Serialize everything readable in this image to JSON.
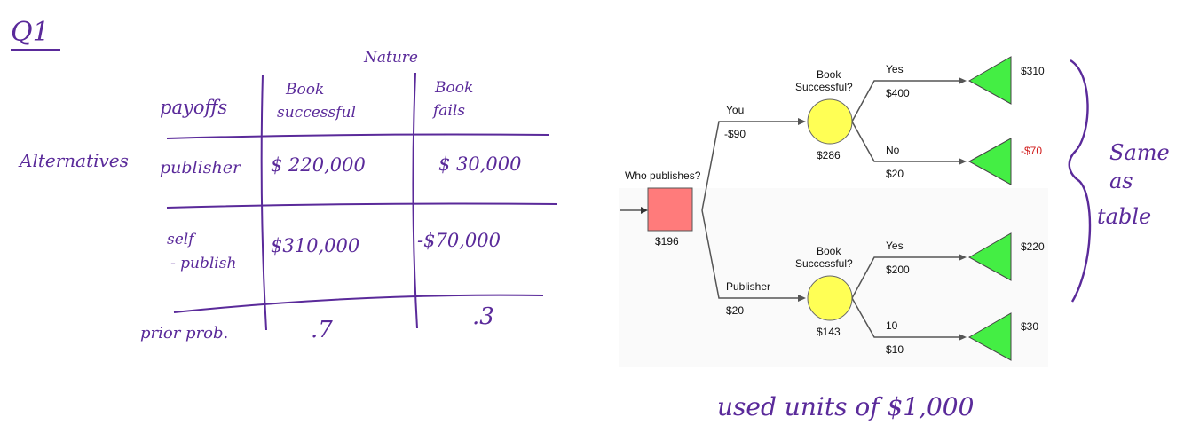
{
  "notes": {
    "question": "Q1",
    "nature": "Nature",
    "alternatives": "Alternatives",
    "payoffs": "payoffs",
    "col_success_1": "Book",
    "col_success_2": "successful",
    "col_fail_1": "Book",
    "col_fail_2": "fails",
    "row_publisher": "publisher",
    "row_self_1": "self",
    "row_self_2": "- publish",
    "prior": "prior prob.",
    "pub_success": "$ 220,000",
    "pub_fail": "$ 30,000",
    "self_success": "$310,000",
    "self_fail": "-$70,000",
    "prob_success": ".7",
    "prob_fail": ".3",
    "same_1": "Same",
    "same_2": "as",
    "same_3": "table",
    "units": "used units of $1,000"
  },
  "tree": {
    "root_label": "Who publishes?",
    "root_value": "$196",
    "you_label": "You",
    "you_cost": "-$90",
    "publisher_label": "Publisher",
    "publisher_cost": "$20",
    "chance_label_1": "Book",
    "chance_label_2": "Successful?",
    "chance_top_value": "$286",
    "chance_bottom_value": "$143",
    "top_yes": "Yes",
    "top_yes_value": "$400",
    "top_no": "No",
    "top_no_value": "$20",
    "bottom_yes": "Yes",
    "bottom_yes_value": "$200",
    "bottom_no": "10",
    "bottom_no_value": "$10",
    "payoff_1": "$310",
    "payoff_2": "-$70",
    "payoff_3": "$220",
    "payoff_4": "$30"
  },
  "colors": {
    "ink": "#5a2a9a",
    "decision": "#ff7b7b",
    "chance": "#ffff55",
    "terminal": "#44ee44",
    "negative": "#d11a1a"
  }
}
